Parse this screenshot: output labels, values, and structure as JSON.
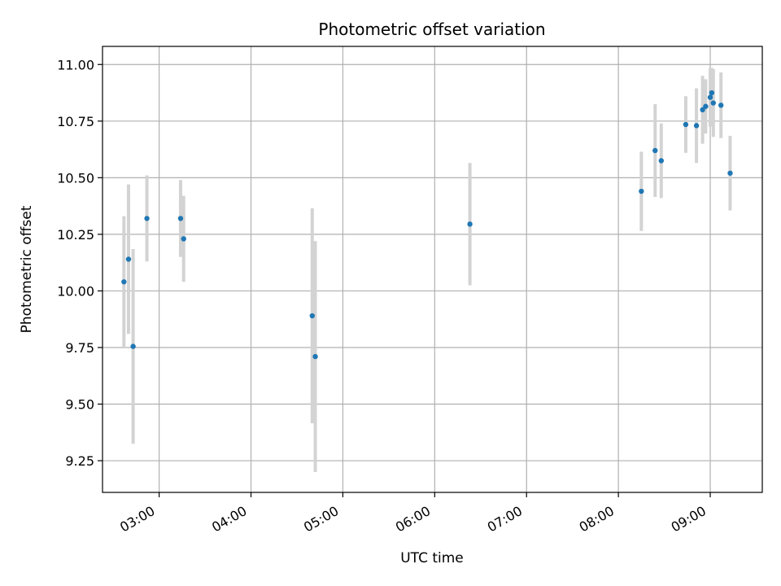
{
  "chart_data": {
    "type": "scatter",
    "title": "Photometric offset variation",
    "xlabel": "UTC time",
    "ylabel": "Photometric offset",
    "x_ticks": [
      "03:00",
      "04:00",
      "05:00",
      "06:00",
      "07:00",
      "08:00",
      "09:00"
    ],
    "y_ticks": [
      "9.25",
      "9.50",
      "9.75",
      "10.00",
      "10.25",
      "10.50",
      "10.75",
      "11.00"
    ],
    "xlim": [
      "02:23",
      "09:34"
    ],
    "ylim": [
      9.11,
      11.08
    ],
    "grid": true,
    "marker_color": "#1f77b4",
    "errorbar_color": "#d3d3d3",
    "points": [
      {
        "x": "02:37",
        "y": 10.04,
        "err": 0.29
      },
      {
        "x": "02:40",
        "y": 10.14,
        "err": 0.33
      },
      {
        "x": "02:43",
        "y": 9.755,
        "err": 0.43
      },
      {
        "x": "02:52",
        "y": 10.32,
        "err": 0.19
      },
      {
        "x": "03:14",
        "y": 10.32,
        "err": 0.17
      },
      {
        "x": "03:16",
        "y": 10.23,
        "err": 0.19
      },
      {
        "x": "04:40",
        "y": 9.89,
        "err": 0.475
      },
      {
        "x": "04:42",
        "y": 9.71,
        "err": 0.51
      },
      {
        "x": "06:23",
        "y": 10.295,
        "err": 0.27
      },
      {
        "x": "08:15",
        "y": 10.44,
        "err": 0.175
      },
      {
        "x": "08:24",
        "y": 10.62,
        "err": 0.205
      },
      {
        "x": "08:28",
        "y": 10.575,
        "err": 0.165
      },
      {
        "x": "08:44",
        "y": 10.735,
        "err": 0.125
      },
      {
        "x": "08:51",
        "y": 10.73,
        "err": 0.165
      },
      {
        "x": "08:55",
        "y": 10.8,
        "err": 0.15
      },
      {
        "x": "08:57",
        "y": 10.815,
        "err": 0.12
      },
      {
        "x": "09:00",
        "y": 10.855,
        "err": 0.13
      },
      {
        "x": "09:01",
        "y": 10.875,
        "err": 0.11
      },
      {
        "x": "09:02",
        "y": 10.83,
        "err": 0.15
      },
      {
        "x": "09:07",
        "y": 10.82,
        "err": 0.145
      },
      {
        "x": "09:13",
        "y": 10.52,
        "err": 0.165
      }
    ]
  }
}
